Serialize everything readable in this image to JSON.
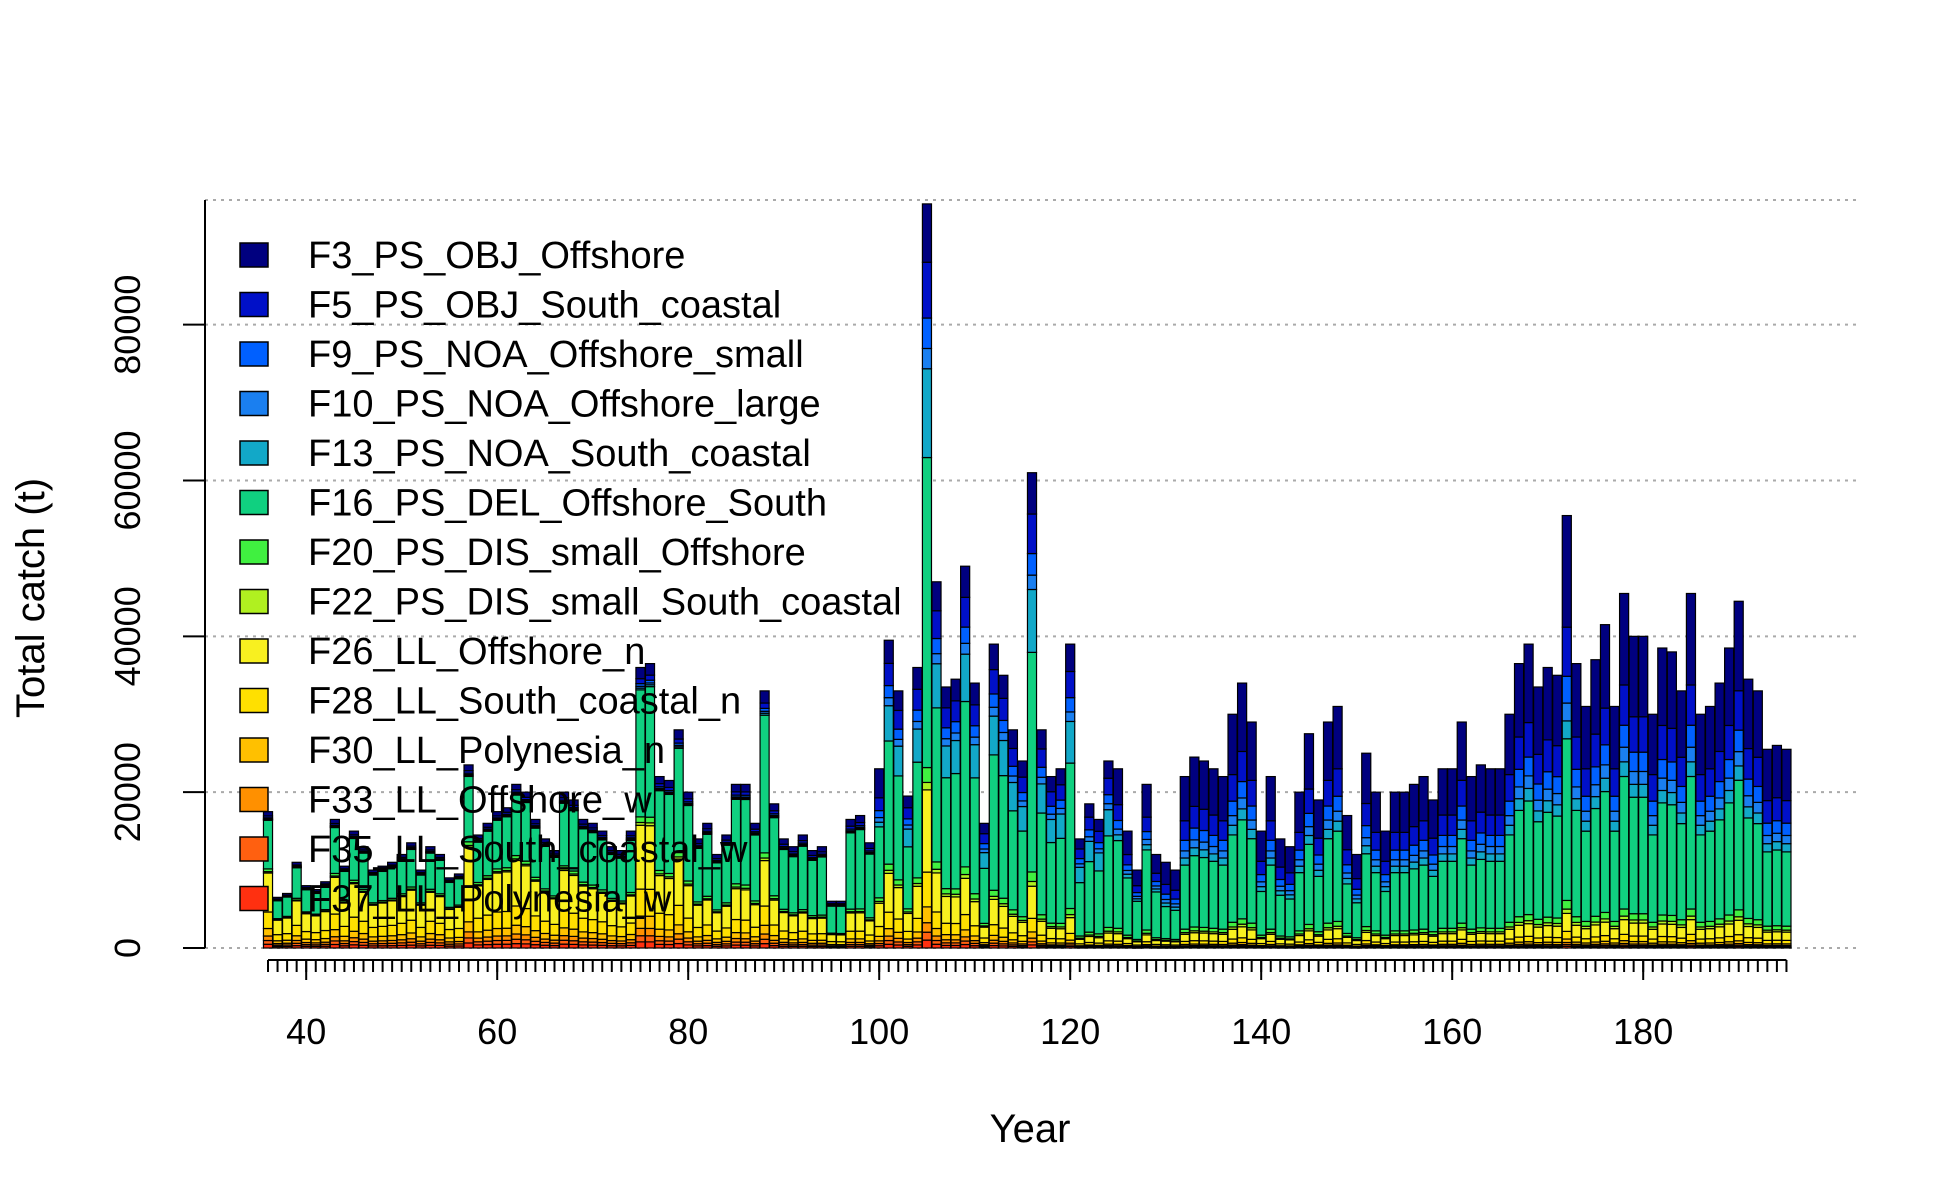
{
  "chart_data": {
    "type": "bar",
    "stacked": true,
    "xlabel": "Year",
    "ylabel": "Total catch (t)",
    "xlim": [
      36,
      196
    ],
    "ylim": [
      0,
      96000
    ],
    "x_ticks": [
      40,
      60,
      80,
      100,
      120,
      140,
      160,
      180
    ],
    "y_ticks": [
      0,
      20000,
      40000,
      60000,
      80000
    ],
    "gridlines": "horizontal dotted",
    "legend_position": "top-left",
    "x": [
      36,
      37,
      38,
      39,
      40,
      41,
      42,
      43,
      44,
      45,
      46,
      47,
      48,
      49,
      50,
      51,
      52,
      53,
      54,
      55,
      56,
      57,
      58,
      59,
      60,
      61,
      62,
      63,
      64,
      65,
      66,
      67,
      68,
      69,
      70,
      71,
      72,
      73,
      74,
      75,
      76,
      77,
      78,
      79,
      80,
      81,
      82,
      83,
      84,
      85,
      86,
      87,
      88,
      89,
      90,
      91,
      92,
      93,
      94,
      95,
      96,
      97,
      98,
      99,
      100,
      101,
      102,
      103,
      104,
      105,
      106,
      107,
      108,
      109,
      110,
      111,
      112,
      113,
      114,
      115,
      116,
      117,
      118,
      119,
      120,
      121,
      122,
      123,
      124,
      125,
      126,
      127,
      128,
      129,
      130,
      131,
      132,
      133,
      134,
      135,
      136,
      137,
      138,
      139,
      140,
      141,
      142,
      143,
      144,
      145,
      146,
      147,
      148,
      149,
      150,
      151,
      152,
      153,
      154,
      155,
      156,
      157,
      158,
      159,
      160,
      161,
      162,
      163,
      164,
      165,
      166,
      167,
      168,
      169,
      170,
      171,
      172,
      173,
      174,
      175,
      176,
      177,
      178,
      179,
      180,
      181,
      182,
      183,
      184,
      185,
      186,
      187,
      188,
      189,
      190,
      191,
      192,
      193,
      194,
      195
    ],
    "totals": [
      17500,
      6500,
      7000,
      11000,
      8000,
      7500,
      8500,
      16500,
      10500,
      15000,
      13000,
      10000,
      10500,
      11000,
      12000,
      13500,
      10000,
      13000,
      12000,
      9000,
      9500,
      23500,
      14500,
      16000,
      17500,
      18000,
      21000,
      20000,
      16500,
      14000,
      12500,
      20000,
      19000,
      16500,
      16000,
      15000,
      13000,
      12500,
      15000,
      36000,
      36500,
      22000,
      21500,
      28000,
      20000,
      14000,
      16000,
      12000,
      14500,
      21000,
      21000,
      16000,
      33000,
      18500,
      14000,
      13000,
      14500,
      12500,
      13000,
      6000,
      6000,
      16500,
      17000,
      13500,
      23000,
      39500,
      33000,
      19500,
      36000,
      95500,
      47000,
      33500,
      34500,
      49000,
      34000,
      16000,
      39000,
      35000,
      28000,
      24000,
      61000,
      28000,
      22000,
      23000,
      39000,
      14000,
      18500,
      16500,
      24000,
      23000,
      15000,
      10000,
      21000,
      12000,
      11000,
      10000,
      22000,
      24500,
      24000,
      23000,
      22000,
      30000,
      34000,
      29000,
      15000,
      22000,
      14000,
      13000,
      20000,
      27500,
      19000,
      29000,
      31000,
      17000,
      12000,
      25000,
      20000,
      15000,
      20000,
      20000,
      21000,
      22000,
      19000,
      23000,
      23000,
      29000,
      22000,
      23500,
      23000,
      23000,
      30000,
      36500,
      39000,
      33500,
      36000,
      35000,
      55500,
      36500,
      31000,
      37000,
      41500,
      31000,
      45500,
      40000,
      40000,
      30000,
      38500,
      38000,
      33000,
      45500,
      30000,
      31000,
      34000,
      38500,
      44500,
      34500,
      33000,
      25500,
      26000,
      25500
    ],
    "series": [
      {
        "name": "F3_PS_OBJ_Offshore",
        "color": "#00007F"
      },
      {
        "name": "F5_PS_OBJ_South_coastal",
        "color": "#0010C8"
      },
      {
        "name": "F9_PS_NOA_Offshore_small",
        "color": "#0060FF"
      },
      {
        "name": "F10_PS_NOA_Offshore_large",
        "color": "#1A7FF0"
      },
      {
        "name": "F13_PS_NOA_South_coastal",
        "color": "#12A8C8"
      },
      {
        "name": "F16_PS_DEL_Offshore_South",
        "color": "#10D080"
      },
      {
        "name": "F20_PS_DIS_small_Offshore",
        "color": "#40F040"
      },
      {
        "name": "F22_PS_DIS_small_South_coastal",
        "color": "#B0F020"
      },
      {
        "name": "F26_LL_Offshore_n",
        "color": "#F8F020"
      },
      {
        "name": "F28_LL_South_coastal_n",
        "color": "#FFE000"
      },
      {
        "name": "F30_LL_Polynesia_n",
        "color": "#FFC000"
      },
      {
        "name": "F33_LL_Offshore_w",
        "color": "#FF9000"
      },
      {
        "name": "F35_LL_South_coastal_w",
        "color": "#FF6010"
      },
      {
        "name": "F37_LL_Polynesia_w",
        "color": "#FF3010"
      }
    ]
  }
}
